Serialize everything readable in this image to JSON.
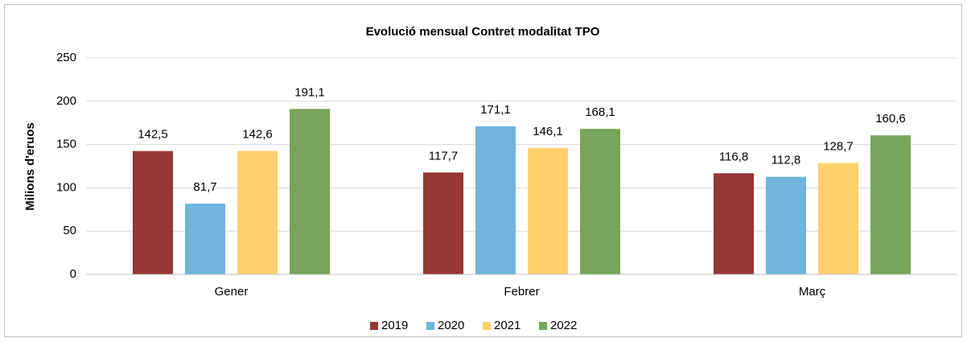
{
  "chart_data": {
    "type": "bar",
    "title": "Evolució mensual Contret modalitat TPO",
    "y_label": "Milions d'eruos",
    "categories": [
      "Gener",
      "Febrer",
      "Març"
    ],
    "series": [
      {
        "name": "2019",
        "color": "#953735",
        "values": [
          142.5,
          117.7,
          116.8
        ],
        "value_labels": [
          "142,5",
          "117,7",
          "116,8"
        ]
      },
      {
        "name": "2020",
        "color": "#70b5dc",
        "values": [
          81.7,
          171.1,
          112.8
        ],
        "value_labels": [
          "81,7",
          "171,1",
          "112,8"
        ]
      },
      {
        "name": "2021",
        "color": "#ffd06e",
        "values": [
          142.6,
          146.1,
          128.7
        ],
        "value_labels": [
          "142,6",
          "146,1",
          "128,7"
        ]
      },
      {
        "name": "2022",
        "color": "#77a55a",
        "values": [
          191.1,
          168.1,
          160.6
        ],
        "value_labels": [
          "191,1",
          "168,1",
          "160,6"
        ]
      }
    ],
    "ylim": [
      0,
      250
    ],
    "yticks": [
      0,
      50,
      100,
      150,
      200,
      250
    ],
    "grid": true,
    "legend": "bottom"
  }
}
